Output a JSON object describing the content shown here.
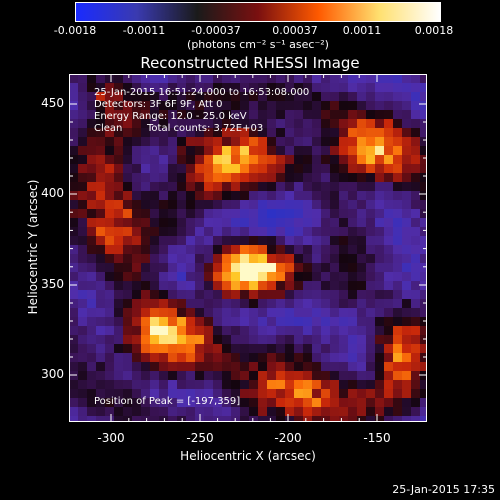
{
  "colorbar": {
    "ticks": [
      "-0.0018",
      "-0.0011",
      "-0.00037",
      "0.00037",
      "0.0011",
      "0.0018"
    ],
    "units": "(photons cm⁻² s⁻¹ asec⁻²)",
    "colors": [
      "#1a2bff",
      "#3a3ab0",
      "#1a1a1a",
      "#7a1010",
      "#ff5a00",
      "#ffe070",
      "#ffffff"
    ]
  },
  "image": {
    "title": "Reconstructed RHESSI Image",
    "time_range": "25-Jan-2015 16:51:24.000 to 16:53:08.000",
    "detectors": "Detectors: 3F 6F 9F, Att 0",
    "energy_range": "Energy Range: 12.0 - 25.0 keV",
    "method": "Clean",
    "total_counts": "Total counts: 3.72E+03",
    "peak_position": "Position of Peak = [-197,359]"
  },
  "axes": {
    "xlabel": "Heliocentric X (arcsec)",
    "ylabel": "Heliocentric Y (arcsec)",
    "x_ticks": [
      "-300",
      "-250",
      "-200",
      "-150"
    ],
    "y_ticks": [
      "450",
      "400",
      "350",
      "300"
    ]
  },
  "footer": {
    "timestamp": "25-Jan-2015 17:35"
  }
}
